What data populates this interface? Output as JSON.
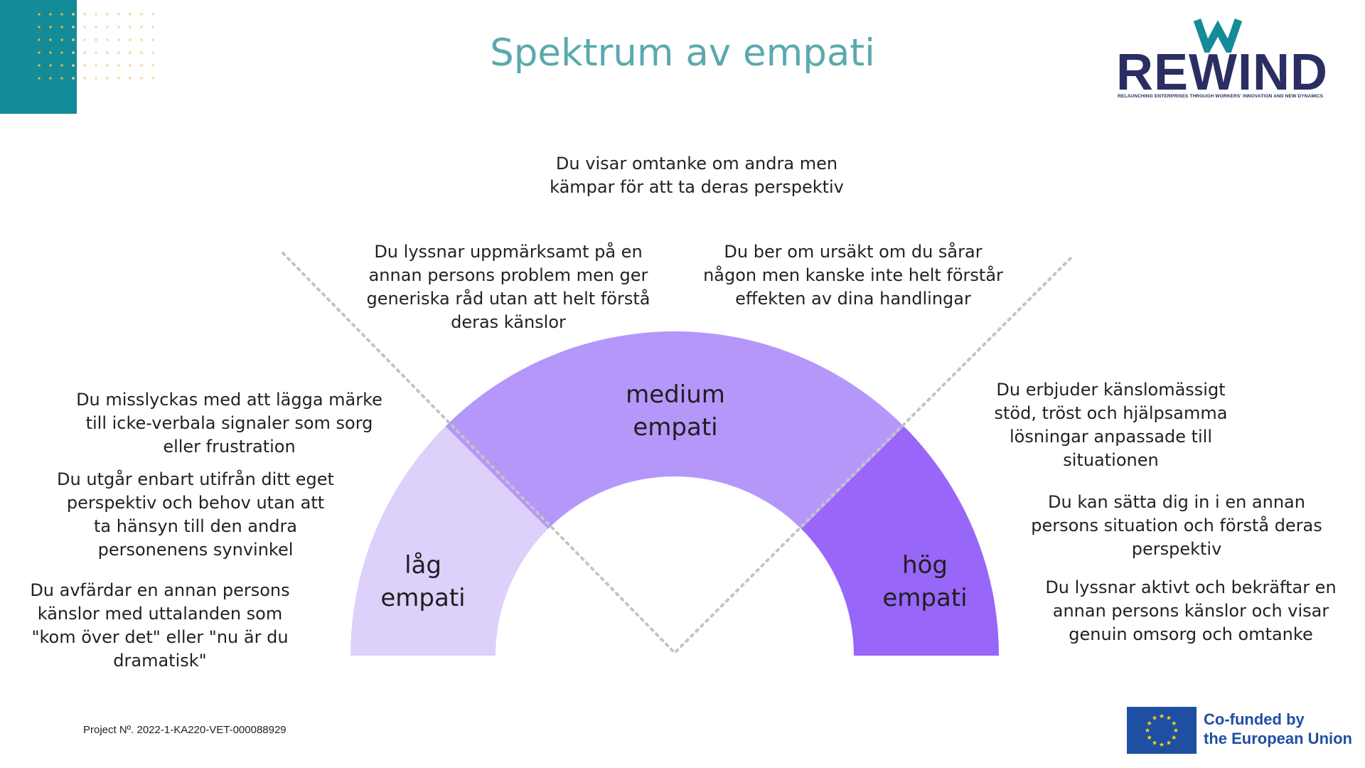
{
  "title": "Spektrum av empati",
  "logo": {
    "word": "REWIND",
    "tagline": "RELAUNCHING ENTERPRISES THROUGH WORKERS' INNOVATION AND NEW DYNAMICS"
  },
  "segments": {
    "low": {
      "line1": "låg",
      "line2": "empati"
    },
    "medium": {
      "line1": "medium",
      "line2": "empati"
    },
    "high": {
      "line1": "hög",
      "line2": "empati"
    }
  },
  "descriptions": {
    "top": "Du visar omtanke om andra men kämpar för att ta deras perspektiv",
    "upper_left": "Du lyssnar uppmärksamt på en annan persons problem men ger generiska råd utan att helt förstå deras känslor",
    "upper_right": "Du ber om ursäkt om du sårar någon men kanske inte helt förstår effekten av dina handlingar",
    "left_1": "Du misslyckas med att lägga märke till icke-verbala signaler som sorg eller frustration",
    "left_2": "Du utgår enbart utifrån ditt eget perspektiv och behov utan att ta hänsyn till den andra personenens synvinkel",
    "left_3": "Du avfärdar en annan persons känslor med uttalanden som \"kom över det\" eller \"nu är du dramatisk\"",
    "right_1": "Du erbjuder känslomässigt stöd, tröst och hjälpsamma lösningar anpassade till situationen",
    "right_2": "Du kan sätta dig in i en annan persons situation och förstå deras perspektiv",
    "right_3": "Du lyssnar aktivt och bekräftar en annan persons känslor och visar genuin omsorg och omtanke"
  },
  "footer": {
    "project": "Project Nº. 2022-1-KA220-VET-000088929",
    "eu_line1": "Co-funded by",
    "eu_line2": "the European Union"
  },
  "colors": {
    "title": "#5aa9ae",
    "teal_block": "#138b98",
    "dots_teal": "#d8b24a",
    "dots_light": "#f3d9a0",
    "low": "#ddd0fb",
    "medium": "#b597fa",
    "high": "#9866f8",
    "dotted_line": "#c4c4c4",
    "logo_navy": "#2b2e62",
    "logo_teal": "#138b98",
    "eu_blue": "#1f4fa3",
    "eu_star": "#ffdd00"
  }
}
